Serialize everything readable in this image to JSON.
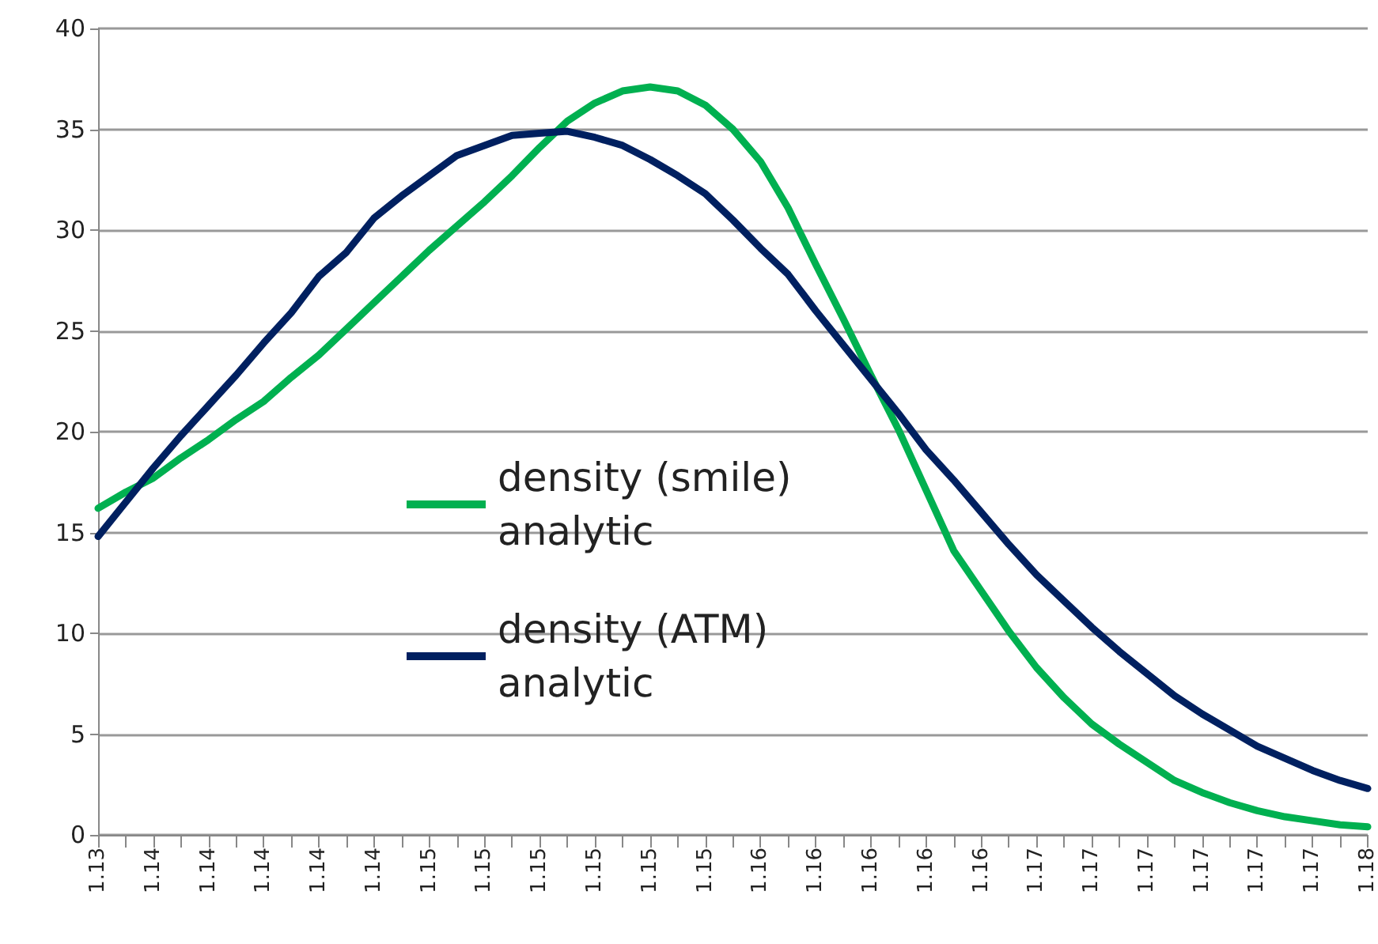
{
  "chart_data": {
    "type": "line",
    "categories": [
      "1.13",
      null,
      "1.14",
      null,
      "1.14",
      null,
      "1.14",
      null,
      "1.14",
      null,
      "1.14",
      null,
      "1.15",
      null,
      "1.15",
      null,
      "1.15",
      null,
      "1.15",
      null,
      "1.15",
      null,
      "1.15",
      null,
      "1.16",
      null,
      "1.16",
      null,
      "1.16",
      null,
      "1.16",
      null,
      "1.16",
      null,
      "1.17",
      null,
      "1.17",
      null,
      "1.17",
      null,
      "1.17",
      null,
      "1.17",
      null,
      "1.17",
      null,
      "1.18"
    ],
    "series": [
      {
        "name": "density (smile) analytic",
        "color": "#00b050",
        "values": [
          16.2,
          17.0,
          17.7,
          18.7,
          19.6,
          20.6,
          21.5,
          22.7,
          23.8,
          25.1,
          26.4,
          27.7,
          29.0,
          30.2,
          31.4,
          32.7,
          34.1,
          35.4,
          36.3,
          36.9,
          37.1,
          36.9,
          36.2,
          35.0,
          33.4,
          31.1,
          28.3,
          25.6,
          22.8,
          20.1,
          17.1,
          14.1,
          12.1,
          10.1,
          8.3,
          6.8,
          5.5,
          4.5,
          3.6,
          2.7,
          2.1,
          1.6,
          1.2,
          0.9,
          0.7,
          0.5,
          0.4
        ]
      },
      {
        "name": "density (ATM) analytic",
        "color": "#002060",
        "values": [
          14.8,
          16.5,
          18.2,
          19.8,
          21.3,
          22.8,
          24.4,
          25.9,
          27.7,
          28.9,
          30.6,
          31.7,
          32.7,
          33.7,
          34.2,
          34.7,
          34.8,
          34.9,
          34.6,
          34.2,
          33.5,
          32.7,
          31.8,
          30.5,
          29.1,
          27.8,
          26.0,
          24.3,
          22.6,
          20.9,
          19.1,
          17.6,
          16.0,
          14.4,
          12.9,
          11.6,
          10.3,
          9.1,
          8.0,
          6.9,
          6.0,
          5.2,
          4.4,
          3.8,
          3.2,
          2.7,
          2.3
        ]
      }
    ],
    "ylim": [
      0,
      40
    ],
    "yticks": [
      0,
      5,
      10,
      15,
      20,
      25,
      30,
      35,
      40
    ],
    "grid": "y",
    "legend": "center",
    "marker": "none",
    "line_style": "solid"
  }
}
